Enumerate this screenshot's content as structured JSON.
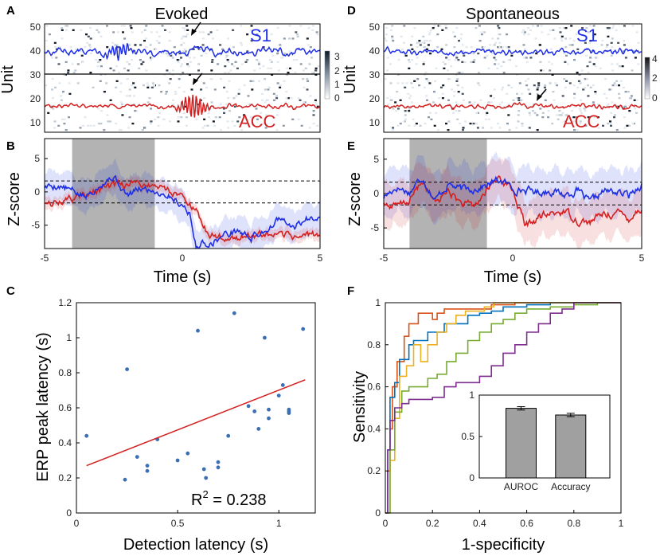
{
  "colors": {
    "s1": "#1f2fe6",
    "acc": "#d42020",
    "scatter_point": "#3a6fb5",
    "fit_line": "#d42020",
    "shade": "#b3b3b3",
    "bar_fill": "#a0a0a0",
    "roc": [
      "#d95319",
      "#0072bd",
      "#edb120",
      "#77ac30",
      "#7e2f8e"
    ]
  },
  "icons": {
    "arrow": "arrow-icon"
  },
  "panels": {
    "A": {
      "letter": "A",
      "title": "Evoked",
      "ylabel": "Unit",
      "s1_label": "S1",
      "acc_label": "ACC",
      "yticks": [
        "50",
        "40",
        "30",
        "20",
        "10"
      ],
      "colorbar_ticks": [
        "3",
        "2",
        "1",
        "0"
      ]
    },
    "D": {
      "letter": "D",
      "title": "Spontaneous",
      "ylabel": "Unit",
      "s1_label": "S1",
      "acc_label": "ACC",
      "yticks": [
        "50",
        "40",
        "30",
        "20",
        "10"
      ],
      "colorbar_ticks": [
        "4",
        "2",
        "0"
      ]
    },
    "B": {
      "letter": "B",
      "xlabel": "Time (s)",
      "ylabel": "Z-score",
      "xticks": [
        "-5",
        "0",
        "5"
      ],
      "yticks": [
        "5",
        "0",
        "-5"
      ]
    },
    "E": {
      "letter": "E",
      "xlabel": "Time (s)",
      "ylabel": "Z-score",
      "xticks": [
        "-5",
        "0",
        "5"
      ],
      "yticks": [
        "5",
        "0",
        "-5"
      ]
    },
    "C": {
      "letter": "C",
      "xlabel": "Detection latency (s)",
      "ylabel": "ERP peak latency (s)",
      "xticks": [
        "0",
        "0.5",
        "1"
      ],
      "yticks": [
        "0",
        "0.2",
        "0.4",
        "0.6",
        "0.8",
        "1",
        "1.2"
      ],
      "annotation_base": "R",
      "annotation_sup": "2",
      "annotation_value": " = 0.238"
    },
    "F": {
      "letter": "F",
      "xlabel": "1-specificity",
      "ylabel": "Sensitivity",
      "xticks": [
        "0",
        "0.2",
        "0.4",
        "0.6",
        "0.8",
        "1"
      ],
      "yticks": [
        "0",
        "0.2",
        "0.4",
        "0.6",
        "0.8",
        "1"
      ],
      "inset_yticks": [
        "1",
        "0.5",
        "0"
      ]
    }
  },
  "chart_data": [
    {
      "id": "A",
      "type": "heatmap",
      "title": "Evoked",
      "ylabel": "Unit",
      "ylim": [
        2,
        53
      ],
      "x_range_s": [
        -5,
        5
      ],
      "colorbar_range": [
        0,
        3
      ],
      "divider_unit": 28,
      "s1_trace_baseline_unit": 40,
      "acc_trace_baseline_unit": 14
    },
    {
      "id": "D",
      "type": "heatmap",
      "title": "Spontaneous",
      "ylabel": "Unit",
      "ylim": [
        2,
        53
      ],
      "x_range_s": [
        -5,
        5
      ],
      "colorbar_range": [
        0,
        4
      ],
      "divider_unit": 28,
      "s1_trace_baseline_unit": 40,
      "acc_trace_baseline_unit": 14
    },
    {
      "id": "B",
      "type": "line",
      "xlabel": "Time (s)",
      "ylabel": "Z-score",
      "xlim": [
        -5,
        5
      ],
      "ylim": [
        -8.5,
        8
      ],
      "shaded_interval": [
        -4,
        -1
      ],
      "threshold_lines": [
        1.65,
        -1.65
      ],
      "series": [
        {
          "name": "S1",
          "color": "#1f2fe6",
          "x": [
            -5,
            -4.5,
            -4,
            -3.5,
            -3,
            -2.5,
            -2,
            -1.5,
            -1,
            -0.5,
            0,
            0.25,
            0.5,
            0.75,
            1,
            1.5,
            2,
            2.5,
            3,
            3.5,
            4,
            4.5,
            5
          ],
          "y": [
            0.8,
            1.0,
            0.1,
            -0.8,
            1.3,
            2.4,
            -0.6,
            0.5,
            0.2,
            -0.4,
            -1.8,
            -3.0,
            -8.4,
            -7.6,
            -7.7,
            -6.5,
            -5.8,
            -6.9,
            -5.8,
            -4.1,
            -5.5,
            -4.2,
            -3.2
          ],
          "band": 2.2
        },
        {
          "name": "ACC",
          "color": "#d42020",
          "x": [
            -5,
            -4.5,
            -4,
            -3.5,
            -3,
            -2.5,
            -2,
            -1.5,
            -1,
            -0.5,
            0,
            0.25,
            0.5,
            0.75,
            1,
            1.5,
            2,
            2.5,
            3,
            3.5,
            4,
            4.5,
            5
          ],
          "y": [
            -2.0,
            -1.5,
            -1.0,
            -0.4,
            0.3,
            0.8,
            0.9,
            1.3,
            0.9,
            0.3,
            -0.5,
            -1.5,
            -3.0,
            -5.5,
            -6.5,
            -6.9,
            -6.8,
            -6.6,
            -6.7,
            -6.8,
            -6.7,
            -6.5,
            -6.4
          ],
          "band": 0.8
        }
      ]
    },
    {
      "id": "E",
      "type": "line",
      "xlabel": "Time (s)",
      "ylabel": "Z-score",
      "xlim": [
        -5,
        5
      ],
      "ylim": [
        -8,
        8
      ],
      "shaded_interval": [
        -4,
        -1
      ],
      "threshold_lines": [
        1.65,
        -1.65
      ],
      "series": [
        {
          "name": "S1",
          "color": "#1f2fe6",
          "x": [
            -5,
            -4.5,
            -4,
            -3.5,
            -3,
            -2.5,
            -2,
            -1.5,
            -1,
            -0.5,
            0,
            0.5,
            1,
            1.5,
            2,
            2.5,
            3,
            3.5,
            4,
            4.5,
            5
          ],
          "y": [
            -0.5,
            1.0,
            0.2,
            2.5,
            -1.0,
            1.5,
            0.5,
            0.8,
            1.2,
            2.0,
            0.8,
            0.5,
            0.2,
            0.5,
            -0.2,
            0.5,
            -1.5,
            0.3,
            0.2,
            -0.3,
            1.5
          ],
          "band": 3.2
        },
        {
          "name": "ACC",
          "color": "#d42020",
          "x": [
            -5,
            -4.5,
            -4,
            -3.5,
            -3,
            -2.5,
            -2,
            -1.5,
            -1,
            -0.5,
            0,
            0.5,
            1,
            1.5,
            2,
            2.5,
            3,
            3.5,
            4,
            4.5,
            5
          ],
          "y": [
            -1.5,
            -2.0,
            -1.0,
            1.8,
            -1.5,
            0.5,
            -1.5,
            -2.0,
            0.5,
            2.5,
            0.5,
            -4.8,
            -3.5,
            -3.0,
            -2.5,
            -3.8,
            -4.2,
            -3.0,
            -2.8,
            -3.5,
            -2.0
          ],
          "band": 3.0
        }
      ]
    },
    {
      "id": "C",
      "type": "scatter",
      "xlabel": "Detection latency (s)",
      "ylabel": "ERP peak latency (s)",
      "xlim": [
        0,
        1.18
      ],
      "ylim": [
        0,
        1.2
      ],
      "x": [
        0.05,
        0.24,
        0.25,
        0.3,
        0.35,
        0.35,
        0.4,
        0.5,
        0.55,
        0.6,
        0.63,
        0.64,
        0.7,
        0.7,
        0.75,
        0.78,
        0.85,
        0.88,
        0.9,
        0.93,
        0.95,
        0.95,
        1.0,
        1.02,
        1.05,
        1.05,
        1.05,
        1.12
      ],
      "y": [
        0.44,
        0.19,
        0.82,
        0.32,
        0.24,
        0.27,
        0.42,
        0.3,
        0.34,
        1.04,
        0.25,
        0.2,
        0.29,
        0.26,
        0.44,
        1.14,
        0.61,
        0.58,
        0.48,
        1.0,
        0.54,
        0.59,
        0.67,
        0.73,
        0.58,
        0.57,
        0.59,
        1.05
      ],
      "fit_line": {
        "x": [
          0.05,
          1.13
        ],
        "y": [
          0.27,
          0.76
        ]
      },
      "annotation": "R2 = 0.238"
    },
    {
      "id": "F",
      "type": "line",
      "xlabel": "1-specificity",
      "ylabel": "Sensitivity",
      "xlim": [
        0,
        1
      ],
      "ylim": [
        0,
        1
      ],
      "series": [
        {
          "name": "ROC 1",
          "color": "#d95319",
          "x": [
            0,
            0.01,
            0.02,
            0.03,
            0.05,
            0.08,
            0.1,
            0.12,
            0.14,
            0.17,
            0.2,
            0.22,
            0.25,
            0.3,
            0.35,
            0.4,
            0.45,
            0.5,
            0.55,
            0.6,
            1.0
          ],
          "y": [
            0,
            0.2,
            0.4,
            0.6,
            0.72,
            0.84,
            0.9,
            0.9,
            0.95,
            0.95,
            0.92,
            0.95,
            0.97,
            0.97,
            0.97,
            0.97,
            0.99,
            0.99,
            1.0,
            1.0,
            1.0
          ]
        },
        {
          "name": "ROC 2",
          "color": "#0072bd",
          "x": [
            0,
            0.01,
            0.02,
            0.04,
            0.06,
            0.1,
            0.12,
            0.15,
            0.18,
            0.2,
            0.25,
            0.3,
            0.35,
            0.4,
            0.45,
            0.5,
            0.6,
            0.7,
            1.0
          ],
          "y": [
            0,
            0.3,
            0.55,
            0.62,
            0.73,
            0.8,
            0.82,
            0.82,
            0.86,
            0.86,
            0.9,
            0.9,
            0.94,
            0.95,
            0.96,
            0.98,
            0.99,
            1.0,
            1.0
          ]
        },
        {
          "name": "ROC 3",
          "color": "#edb120",
          "x": [
            0,
            0.02,
            0.04,
            0.06,
            0.09,
            0.12,
            0.15,
            0.18,
            0.22,
            0.26,
            0.3,
            0.34,
            0.38,
            0.42,
            0.46,
            0.5,
            0.6,
            0.7,
            1.0
          ],
          "y": [
            0,
            0.25,
            0.45,
            0.65,
            0.7,
            0.8,
            0.72,
            0.8,
            0.86,
            0.9,
            0.94,
            0.96,
            0.96,
            0.98,
            1.0,
            1.0,
            1.0,
            1.0,
            1.0
          ]
        },
        {
          "name": "ROC 4",
          "color": "#77ac30",
          "x": [
            0,
            0.02,
            0.04,
            0.07,
            0.1,
            0.14,
            0.18,
            0.22,
            0.26,
            0.3,
            0.35,
            0.4,
            0.45,
            0.5,
            0.55,
            0.6,
            0.7,
            0.8,
            0.9,
            1.0
          ],
          "y": [
            0,
            0.3,
            0.48,
            0.58,
            0.6,
            0.6,
            0.64,
            0.66,
            0.72,
            0.76,
            0.82,
            0.86,
            0.9,
            0.92,
            0.95,
            0.97,
            0.98,
            0.99,
            1.0,
            1.0
          ]
        },
        {
          "name": "ROC 5",
          "color": "#7e2f8e",
          "x": [
            0,
            0.01,
            0.02,
            0.04,
            0.07,
            0.1,
            0.15,
            0.2,
            0.25,
            0.3,
            0.35,
            0.4,
            0.45,
            0.5,
            0.55,
            0.6,
            0.65,
            0.7,
            0.75,
            0.8,
            0.9,
            1.0
          ],
          "y": [
            0,
            0.3,
            0.44,
            0.5,
            0.52,
            0.54,
            0.54,
            0.55,
            0.6,
            0.62,
            0.62,
            0.65,
            0.7,
            0.76,
            0.8,
            0.86,
            0.9,
            0.95,
            0.97,
            1.0,
            1.0,
            1.0
          ]
        }
      ]
    },
    {
      "id": "F-inset",
      "type": "bar",
      "categories": [
        "AUROC",
        "Accuracy"
      ],
      "values": [
        0.84,
        0.76
      ],
      "errors": [
        0.02,
        0.02
      ],
      "ylim": [
        0,
        1
      ]
    }
  ]
}
